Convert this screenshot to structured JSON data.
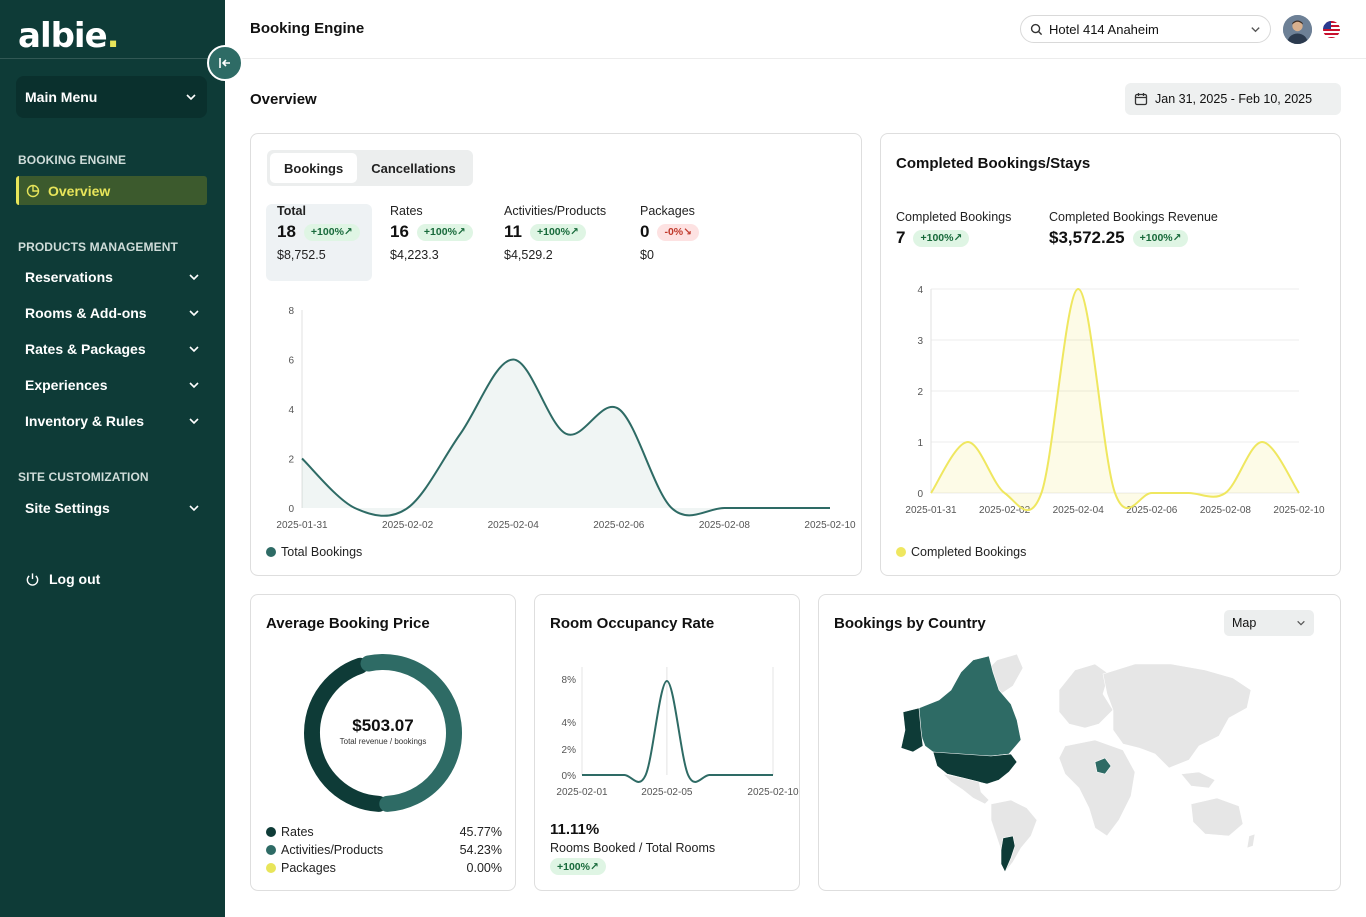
{
  "brand": {
    "logo_text": "albie",
    "logo_dot": ".",
    "accent": "#e8e55a",
    "sidebar_bg": "#0e3b37",
    "primary": "#2e6b65"
  },
  "sidebar": {
    "main_menu": "Main Menu",
    "sections": [
      {
        "title": "BOOKING ENGINE"
      },
      {
        "title": "PRODUCTS MANAGEMENT"
      },
      {
        "title": "SITE CUSTOMIZATION"
      }
    ],
    "active_item": "Overview",
    "items": [
      {
        "label": "Reservations"
      },
      {
        "label": "Rooms & Add-ons"
      },
      {
        "label": "Rates & Packages"
      },
      {
        "label": "Experiences"
      },
      {
        "label": "Inventory & Rules"
      },
      {
        "label": "Site Settings"
      }
    ],
    "logout": "Log out"
  },
  "header": {
    "title": "Booking Engine",
    "hotel": "Hotel 414 Anaheim"
  },
  "overview": {
    "title": "Overview",
    "date_range": "Jan 31, 2025 - Feb 10, 2025"
  },
  "bookings_card": {
    "tabs": [
      "Bookings",
      "Cancellations"
    ],
    "stats": [
      {
        "label": "Total",
        "value": "18",
        "change": "+100%↗",
        "amount": "$8,752.5"
      },
      {
        "label": "Rates",
        "value": "16",
        "change": "+100%↗",
        "amount": "$4,223.3"
      },
      {
        "label": "Activities/Products",
        "value": "11",
        "change": "+100%↗",
        "amount": "$4,529.2"
      },
      {
        "label": "Packages",
        "value": "0",
        "change": "-0%↘",
        "amount": "$0"
      }
    ],
    "legend": "Total Bookings"
  },
  "completed_card": {
    "title": "Completed Bookings/Stays",
    "stats": [
      {
        "label": "Completed Bookings",
        "value": "7",
        "change": "+100%↗"
      },
      {
        "label": "Completed Bookings Revenue",
        "value": "$3,572.25",
        "change": "+100%↗"
      }
    ],
    "legend": "Completed Bookings"
  },
  "avg_price_card": {
    "title": "Average Booking Price",
    "center_value": "$503.07",
    "center_sub": "Total revenue / bookings",
    "legend": [
      {
        "label": "Rates",
        "value": "45.77%",
        "color": "#0e3b37"
      },
      {
        "label": "Activities/Products",
        "value": "54.23%",
        "color": "#2e6b65"
      },
      {
        "label": "Packages",
        "value": "0.00%",
        "color": "#e8e55a"
      }
    ]
  },
  "occupancy_card": {
    "title": "Room Occupancy Rate",
    "value": "11.11%",
    "sub": "Rooms Booked / Total Rooms",
    "change": "+100%↗"
  },
  "country_card": {
    "title": "Bookings by Country",
    "view_select": "Map"
  },
  "chart_data": [
    {
      "type": "area",
      "title": "",
      "x": [
        "2025-01-31",
        "2025-02-01",
        "2025-02-02",
        "2025-02-03",
        "2025-02-04",
        "2025-02-05",
        "2025-02-06",
        "2025-02-07",
        "2025-02-08",
        "2025-02-09",
        "2025-02-10"
      ],
      "x_tick_labels": [
        "2025-01-31",
        "2025-02-02",
        "2025-02-04",
        "2025-02-06",
        "2025-02-08",
        "2025-02-10"
      ],
      "y_ticks": [
        0,
        2,
        4,
        6,
        8
      ],
      "ylim": [
        0,
        8
      ],
      "series": [
        {
          "name": "Total Bookings",
          "values": [
            2,
            0,
            0,
            3,
            6,
            3,
            4,
            0,
            0,
            0,
            0
          ],
          "color": "#2e6b65"
        }
      ]
    },
    {
      "type": "area",
      "title": "",
      "x": [
        "2025-01-31",
        "2025-02-01",
        "2025-02-02",
        "2025-02-03",
        "2025-02-04",
        "2025-02-05",
        "2025-02-06",
        "2025-02-07",
        "2025-02-08",
        "2025-02-09",
        "2025-02-10"
      ],
      "x_tick_labels": [
        "2025-01-31",
        "2025-02-02",
        "2025-02-04",
        "2025-02-06",
        "2025-02-08",
        "2025-02-10"
      ],
      "y_ticks": [
        0,
        1,
        2,
        3,
        4
      ],
      "ylim": [
        0,
        4
      ],
      "series": [
        {
          "name": "Completed Bookings",
          "values": [
            0,
            1,
            0,
            0,
            4,
            0,
            0,
            0,
            0,
            1,
            0
          ],
          "color": "#efe760"
        }
      ]
    },
    {
      "type": "pie",
      "title": "",
      "categories": [
        "Rates",
        "Activities/Products",
        "Packages"
      ],
      "values": [
        45.77,
        54.23,
        0.0
      ]
    },
    {
      "type": "line",
      "title": "",
      "x": [
        "2025-02-01",
        "2025-02-02",
        "2025-02-03",
        "2025-02-04",
        "2025-02-05",
        "2025-02-06",
        "2025-02-07",
        "2025-02-08",
        "2025-02-09",
        "2025-02-10"
      ],
      "x_tick_labels": [
        "2025-02-01",
        "2025-02-05",
        "2025-02-10"
      ],
      "y_tick_labels": [
        "0%",
        "2%",
        "4%",
        "8%"
      ],
      "ylim": [
        0,
        8
      ],
      "series": [
        {
          "values": [
            0,
            0,
            0,
            0,
            8,
            0,
            0,
            0,
            0,
            0
          ],
          "color": "#2e6b65"
        }
      ]
    }
  ]
}
